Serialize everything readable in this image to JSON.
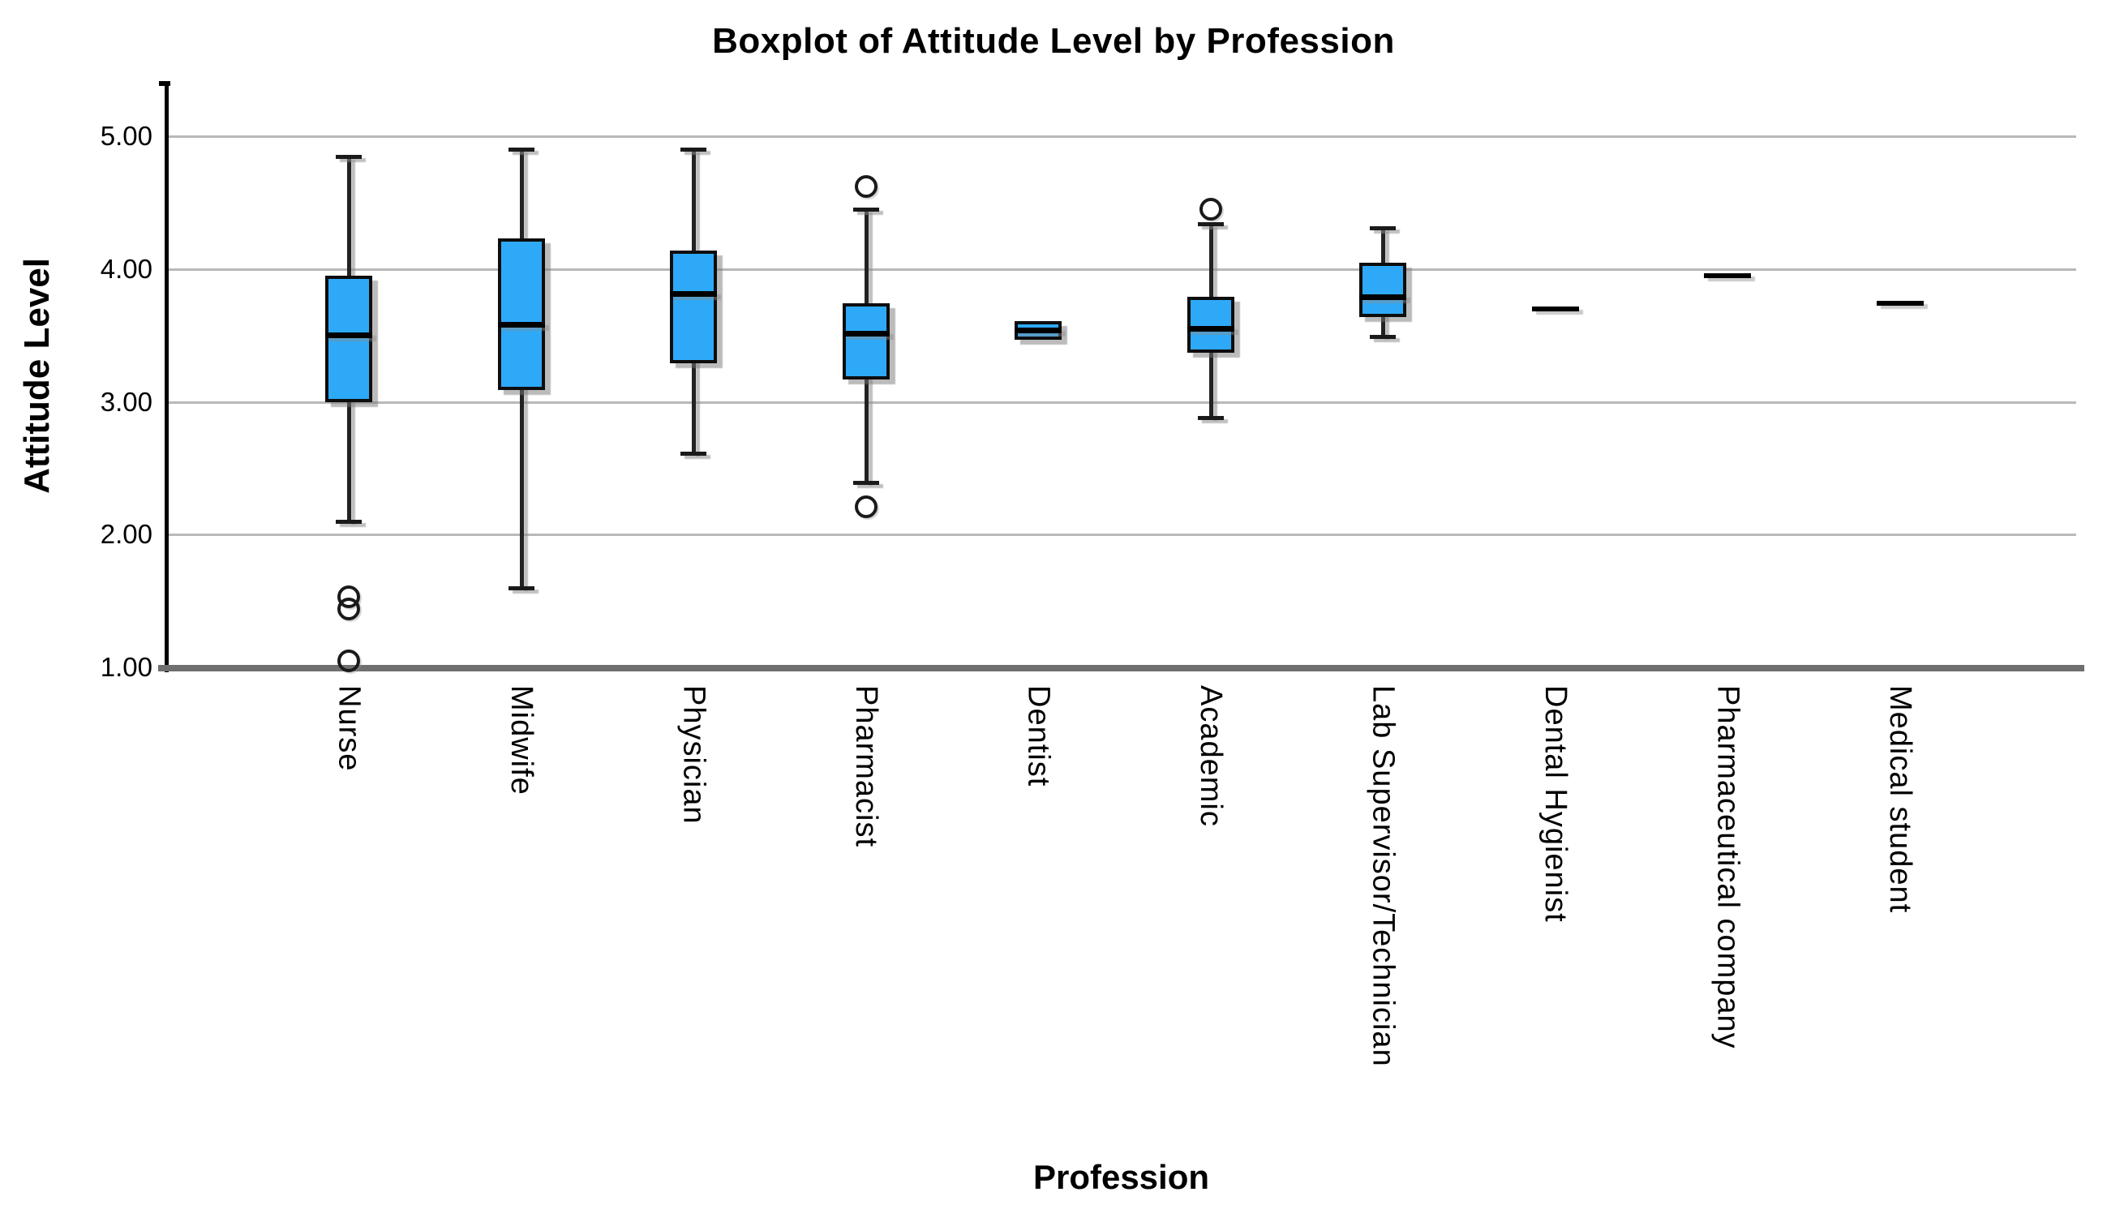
{
  "figure": {
    "title": "Boxplot of Attitude Level by Profession",
    "x_axis_title": "Profession",
    "y_axis_title": "Attitude Level"
  },
  "chart_data": {
    "type": "boxplot",
    "title": "Boxplot of Attitude Level by Profession",
    "xlabel": "Profession",
    "ylabel": "Attitude Level",
    "ylim": [
      1.0,
      5.4
    ],
    "grid": "horizontal",
    "legend": "none",
    "y_ticks": [
      {
        "label": "5.00",
        "value": 5.0
      },
      {
        "label": "4.00",
        "value": 4.0
      },
      {
        "label": "3.00",
        "value": 3.0
      },
      {
        "label": "2.00",
        "value": 2.0
      },
      {
        "label": "1.00",
        "value": 1.0
      }
    ],
    "categories": [
      "Nurse",
      "Midwife",
      "Physician",
      "Pharmacist",
      "Dentist",
      "Academic",
      "Lab Supervisor/Technician",
      "Dental Hygienist",
      "Pharmaceutical company",
      "Medical student"
    ],
    "boxes": [
      {
        "label": "Nurse",
        "whisker_low": 2.1,
        "q1": 3.0,
        "median": 3.5,
        "q3": 3.95,
        "whisker_high": 4.85,
        "outliers": [
          1.53,
          1.44,
          1.05
        ],
        "line_only": false
      },
      {
        "label": "Midwife",
        "whisker_low": 1.6,
        "q1": 3.09,
        "median": 3.58,
        "q3": 4.23,
        "whisker_high": 4.9,
        "outliers": [],
        "line_only": false
      },
      {
        "label": "Physician",
        "whisker_low": 2.61,
        "q1": 3.29,
        "median": 3.81,
        "q3": 4.14,
        "whisker_high": 4.9,
        "outliers": [],
        "line_only": false
      },
      {
        "label": "Pharmacist",
        "whisker_low": 2.39,
        "q1": 3.17,
        "median": 3.51,
        "q3": 3.74,
        "whisker_high": 4.45,
        "outliers": [
          4.62,
          2.21
        ],
        "line_only": false
      },
      {
        "label": "Dentist",
        "whisker_low": null,
        "q1": 3.47,
        "median": 3.54,
        "q3": 3.61,
        "whisker_high": null,
        "outliers": [],
        "line_only": false
      },
      {
        "label": "Academic",
        "whisker_low": 2.88,
        "q1": 3.37,
        "median": 3.55,
        "q3": 3.79,
        "whisker_high": 4.34,
        "outliers": [
          4.45
        ],
        "line_only": false
      },
      {
        "label": "Lab Supervisor/Technician",
        "whisker_low": 3.49,
        "q1": 3.64,
        "median": 3.79,
        "q3": 4.05,
        "whisker_high": 4.31,
        "outliers": [],
        "line_only": false
      },
      {
        "label": "Dental Hygienist",
        "whisker_low": null,
        "q1": null,
        "median": 3.7,
        "q3": null,
        "whisker_high": null,
        "outliers": [],
        "line_only": true
      },
      {
        "label": "Pharmaceutical company",
        "whisker_low": null,
        "q1": null,
        "median": 3.95,
        "q3": null,
        "whisker_high": null,
        "outliers": [],
        "line_only": true
      },
      {
        "label": "Medical student",
        "whisker_low": null,
        "q1": null,
        "median": 3.74,
        "q3": null,
        "whisker_high": null,
        "outliers": [],
        "line_only": true
      }
    ],
    "colors": {
      "box_fill": "#2EA9F8",
      "box_border": "#0d0d0d",
      "median_line": "#000000",
      "whisker": "#222222",
      "outlier_stroke": "#1a1a1a",
      "gridline": "#b9b9b9",
      "y_axis_line": "#000000",
      "x_axis_line": "#6f6f6f",
      "background": "#ffffff"
    }
  }
}
